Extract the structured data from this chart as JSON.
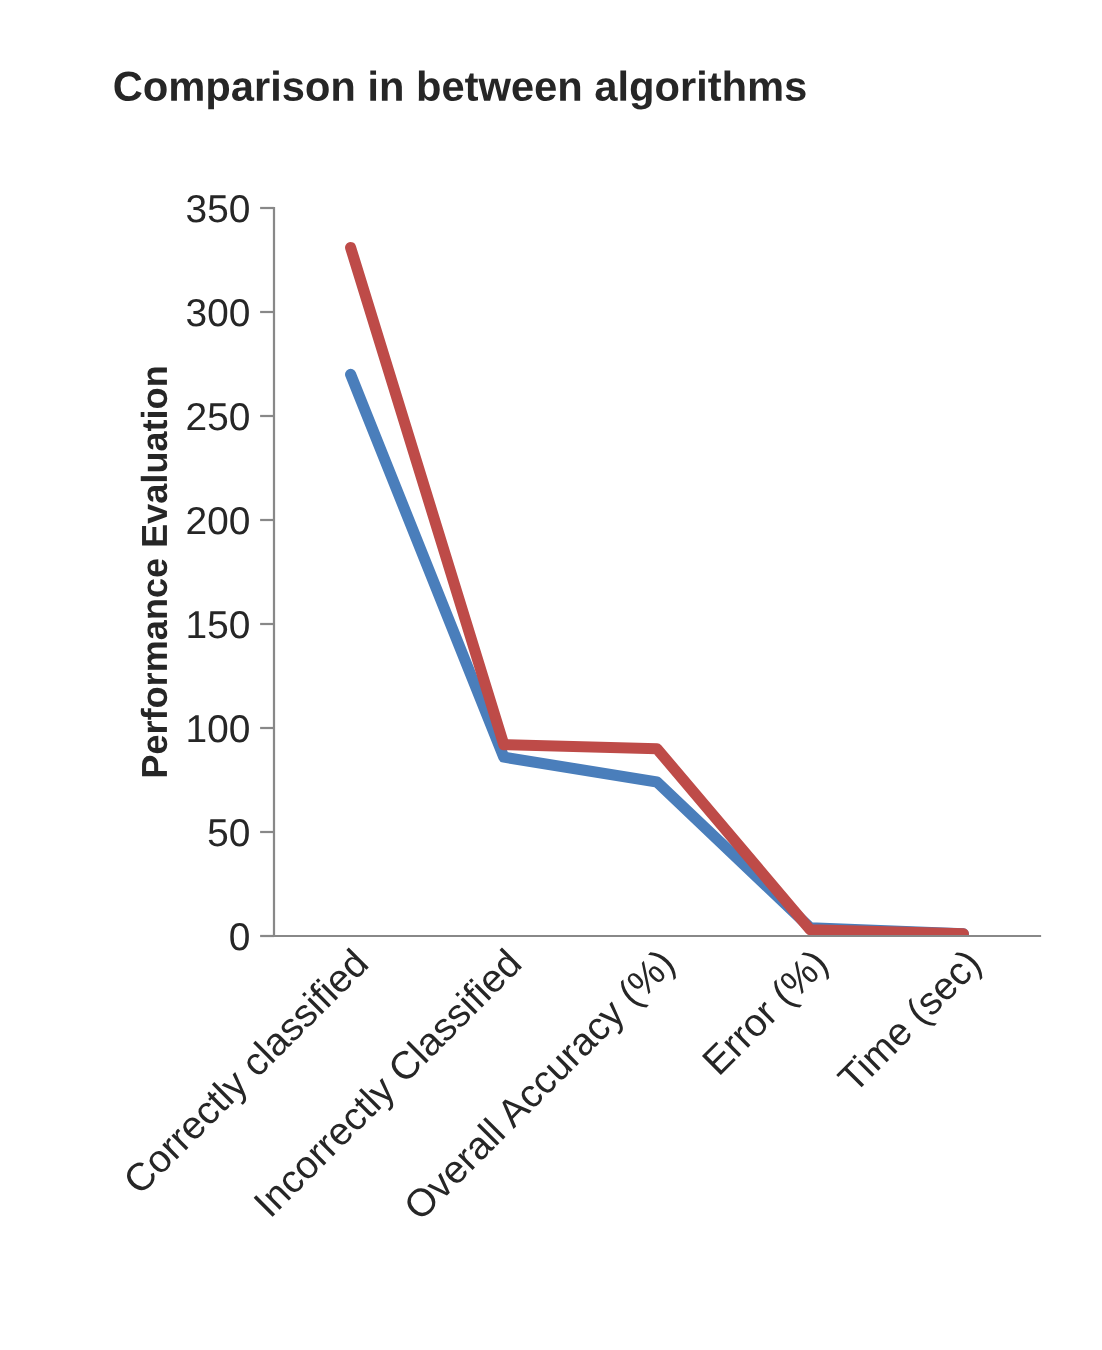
{
  "chart_data": {
    "type": "line",
    "title": "Comparison in between algorithms",
    "ylabel": "Performance Evaluation",
    "categories": [
      "Correctly classified",
      "Incorrectly Classified",
      "Overall Accuracy (%)",
      "Error (%)",
      "Time (sec)"
    ],
    "series": [
      {
        "color": "#4a7ebb",
        "values": [
          270,
          86,
          74,
          4,
          1
        ]
      },
      {
        "color": "#be4b48",
        "values": [
          331,
          92,
          90,
          3,
          1
        ]
      }
    ],
    "ylim": [
      0,
      350
    ],
    "yticks": [
      0,
      50,
      100,
      150,
      200,
      250,
      300,
      350
    ],
    "grid": false,
    "legend": false,
    "marker": "none",
    "line_style": "solid"
  }
}
